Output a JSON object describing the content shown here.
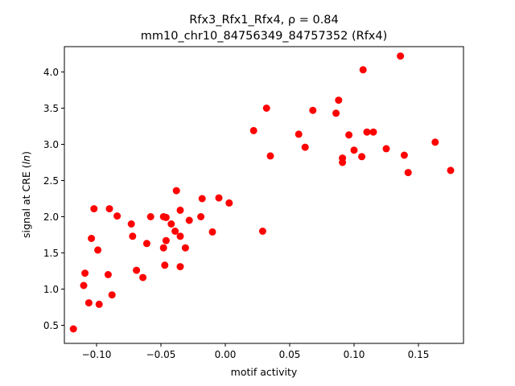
{
  "chart_data": {
    "type": "scatter",
    "title_line1": "Rfx3_Rfx1_Rfx4, ρ = 0.84",
    "title_line2": "mm10_chr10_84756349_84757352 (Rfx4)",
    "xlabel": "motif activity",
    "ylabel_prefix": "signal at CRE (",
    "ylabel_italic": "ln",
    "ylabel_suffix": ")",
    "xlim": [
      -0.125,
      0.185
    ],
    "ylim": [
      0.25,
      4.35
    ],
    "x_ticks": [
      {
        "value": -0.1,
        "label": "−0.10"
      },
      {
        "value": -0.05,
        "label": "−0.05"
      },
      {
        "value": 0.0,
        "label": "0.00"
      },
      {
        "value": 0.05,
        "label": "0.05"
      },
      {
        "value": 0.1,
        "label": "0.10"
      },
      {
        "value": 0.15,
        "label": "0.15"
      }
    ],
    "y_ticks": [
      {
        "value": 0.5,
        "label": "0.5"
      },
      {
        "value": 1.0,
        "label": "1.0"
      },
      {
        "value": 1.5,
        "label": "1.5"
      },
      {
        "value": 2.0,
        "label": "2.0"
      },
      {
        "value": 2.5,
        "label": "2.5"
      },
      {
        "value": 3.0,
        "label": "3.0"
      },
      {
        "value": 3.5,
        "label": "3.5"
      },
      {
        "value": 4.0,
        "label": "4.0"
      }
    ],
    "grid": false,
    "marker_color": "#ff0000",
    "points": [
      [
        -0.118,
        0.45
      ],
      [
        -0.11,
        1.05
      ],
      [
        -0.109,
        1.22
      ],
      [
        -0.106,
        0.81
      ],
      [
        -0.104,
        1.7
      ],
      [
        -0.102,
        2.11
      ],
      [
        -0.099,
        1.54
      ],
      [
        -0.098,
        0.79
      ],
      [
        -0.091,
        1.2
      ],
      [
        -0.09,
        2.11
      ],
      [
        -0.088,
        0.92
      ],
      [
        -0.084,
        2.01
      ],
      [
        -0.073,
        1.9
      ],
      [
        -0.072,
        1.73
      ],
      [
        -0.069,
        1.26
      ],
      [
        -0.064,
        1.16
      ],
      [
        -0.061,
        1.63
      ],
      [
        -0.058,
        2.0
      ],
      [
        -0.048,
        2.0
      ],
      [
        -0.048,
        1.57
      ],
      [
        -0.047,
        1.33
      ],
      [
        -0.046,
        1.99
      ],
      [
        -0.046,
        1.67
      ],
      [
        -0.042,
        1.9
      ],
      [
        -0.039,
        1.8
      ],
      [
        -0.038,
        2.36
      ],
      [
        -0.035,
        2.09
      ],
      [
        -0.035,
        1.73
      ],
      [
        -0.035,
        1.31
      ],
      [
        -0.031,
        1.57
      ],
      [
        -0.028,
        1.95
      ],
      [
        -0.019,
        2.0
      ],
      [
        -0.018,
        2.25
      ],
      [
        -0.01,
        1.79
      ],
      [
        -0.005,
        2.26
      ],
      [
        0.003,
        2.19
      ],
      [
        0.022,
        3.19
      ],
      [
        0.029,
        1.8
      ],
      [
        0.032,
        3.5
      ],
      [
        0.035,
        2.84
      ],
      [
        0.057,
        3.14
      ],
      [
        0.062,
        2.96
      ],
      [
        0.068,
        3.47
      ],
      [
        0.086,
        3.43
      ],
      [
        0.088,
        3.61
      ],
      [
        0.091,
        2.81
      ],
      [
        0.091,
        2.75
      ],
      [
        0.096,
        3.13
      ],
      [
        0.1,
        2.92
      ],
      [
        0.106,
        2.83
      ],
      [
        0.107,
        4.03
      ],
      [
        0.11,
        3.17
      ],
      [
        0.115,
        3.17
      ],
      [
        0.125,
        2.94
      ],
      [
        0.136,
        4.22
      ],
      [
        0.139,
        2.85
      ],
      [
        0.142,
        2.61
      ],
      [
        0.163,
        3.03
      ],
      [
        0.175,
        2.64
      ]
    ]
  }
}
